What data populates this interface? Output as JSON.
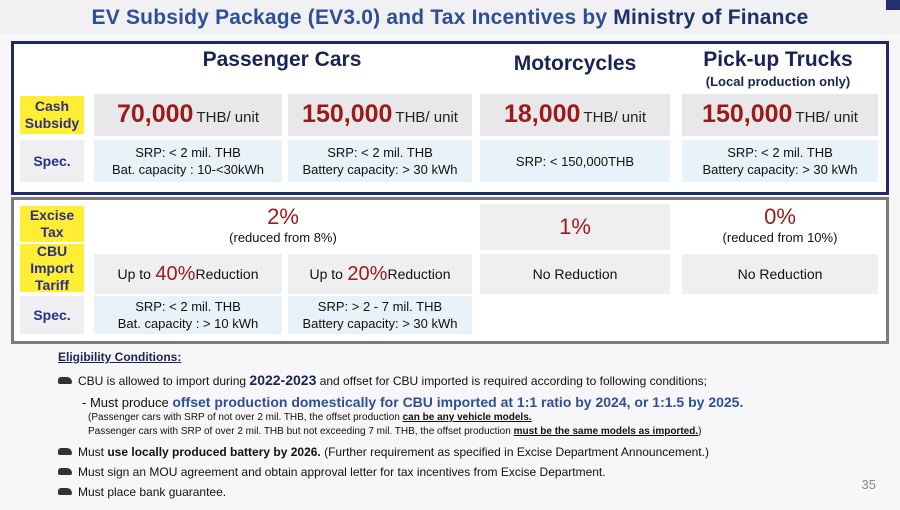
{
  "title": {
    "part1": "EV Subsidy Package (EV3.0) and Tax Incentives by ",
    "part2": "Ministry of Finance"
  },
  "columns": {
    "passenger": "Passenger Cars",
    "motorcycles": "Motorcycles",
    "pickup": "Pick-up Trucks",
    "pickup_sub": "(Local production only)"
  },
  "subsidy": {
    "label": "Cash Subsidy",
    "pc1_amount": "70,000",
    "pc2_amount": "150,000",
    "moto_amount": "18,000",
    "pickup_amount": "150,000",
    "unit": "THB/ unit"
  },
  "spec1": {
    "label": "Spec.",
    "pc1_line1": "SRP: < 2 mil. THB",
    "pc1_line2": "Bat. capacity : 10-<30kWh",
    "pc2_line1": "SRP: < 2 mil. THB",
    "pc2_line2": "Battery capacity: > 30 kWh",
    "moto_line1": "SRP: < 150,000THB",
    "pickup_line1": "SRP: < 2 mil. THB",
    "pickup_line2": "Battery capacity: > 30 kWh"
  },
  "excise": {
    "label": "Excise Tax",
    "pc_pct": "2%",
    "pc_note": "(reduced from 8%)",
    "moto_pct": "1%",
    "pickup_pct": "0%",
    "pickup_note": "(reduced from 10%)"
  },
  "cbu": {
    "label": "CBU Import Tariff",
    "pc1_pre": "Up to ",
    "pc1_pct": "40%",
    "pc1_post": " Reduction",
    "pc2_pre": "Up to ",
    "pc2_pct": "20%",
    "pc2_post": " Reduction",
    "moto": "No Reduction",
    "pickup": "No Reduction"
  },
  "spec2": {
    "label": "Spec.",
    "pc1_line1": "SRP: < 2 mil. THB",
    "pc1_line2": "Bat. capacity : > 10 kWh",
    "pc2_line1": "SRP: > 2 - 7 mil. THB",
    "pc2_line2": "Battery capacity: > 30 kWh"
  },
  "eligibility": {
    "heading": "Eligibility Conditions",
    "cond1_pre": "CBU is allowed to import during ",
    "cond1_years": "2022-2023",
    "cond1_post": " and offset for CBU imported is required according to following conditions;",
    "must_pre": "- Must produce ",
    "must_strong": "offset production domestically for CBU imported at 1:1 ratio by 2024, or 1:1.5 by 2025.",
    "note1_pre": "(Passenger cars with SRP of not over 2 mil. THB, the offset production ",
    "note1_strong": "can be any vehicle models.",
    "note2_pre": "Passenger cars with SRP of over 2 mil. THB but not exceeding 7 mil. THB, the offset production ",
    "note2_strong": "must be the same models as imported.",
    "note2_post": ")",
    "cond2_pre": "Must ",
    "cond2_strong": "use locally produced battery by 2026.",
    "cond2_post": " (Further requirement as specified in Excise Department Announcement.)",
    "cond3": "Must sign an MOU agreement and obtain approval letter for tax incentives from Excise Department.",
    "cond4": "Must place bank guarantee."
  },
  "page_number": "35",
  "colors": {
    "title": "#2f4e9a",
    "accent_red": "#9b1b1b",
    "label_yellow": "#ffee33",
    "frame_navy": "#1f2a66"
  }
}
